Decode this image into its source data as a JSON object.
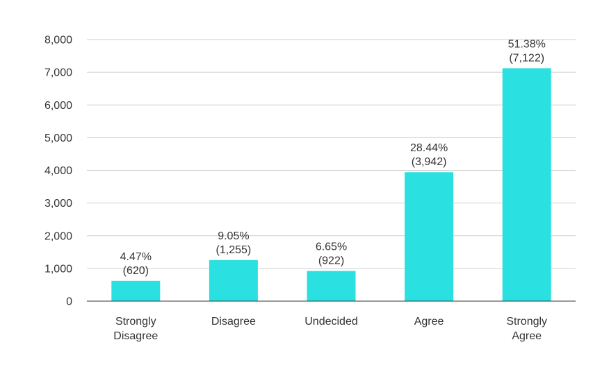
{
  "chart_data": {
    "type": "bar",
    "categories": [
      [
        "Strongly",
        "Disagree"
      ],
      [
        "Disagree"
      ],
      [
        "Undecided"
      ],
      [
        "Agree"
      ],
      [
        "Strongly",
        "Agree"
      ]
    ],
    "values": [
      620,
      1255,
      922,
      3942,
      7122
    ],
    "data_labels": [
      [
        "4.47%",
        "(620)"
      ],
      [
        "9.05%",
        "(1,255)"
      ],
      [
        "6.65%",
        "(922)"
      ],
      [
        "28.44%",
        "(3,942)"
      ],
      [
        "51.38%",
        "(7,122)"
      ]
    ],
    "yticks": [
      0,
      1000,
      2000,
      3000,
      4000,
      5000,
      6000,
      7000,
      8000
    ],
    "ytick_labels": [
      "0",
      "1,000",
      "2,000",
      "3,000",
      "4,000",
      "5,000",
      "6,000",
      "7,000",
      "8,000"
    ],
    "ylim": [
      0,
      8000
    ],
    "grid": true,
    "bar_color": "#2ae0e0",
    "title": "",
    "xlabel": "",
    "ylabel": ""
  }
}
